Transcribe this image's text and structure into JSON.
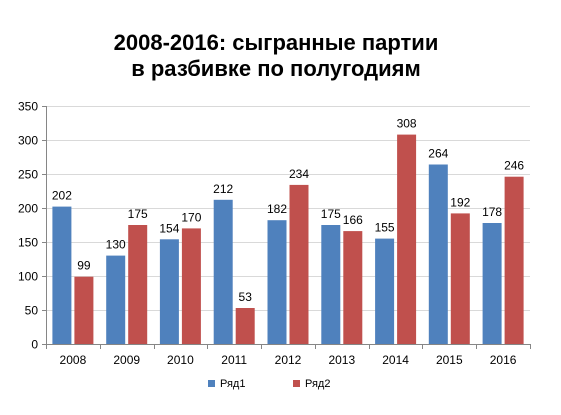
{
  "chart_data": {
    "type": "bar",
    "title_lines": [
      "2008-2016: сыгранные партии",
      "в разбивке по полугодиям"
    ],
    "categories": [
      "2008",
      "2009",
      "2010",
      "2011",
      "2012",
      "2013",
      "2014",
      "2015",
      "2016"
    ],
    "series": [
      {
        "name": "Ряд1",
        "color": "#4f81bd",
        "values": [
          202,
          130,
          154,
          212,
          182,
          175,
          155,
          264,
          178
        ]
      },
      {
        "name": "Ряд2",
        "color": "#c0504d",
        "values": [
          99,
          175,
          170,
          53,
          234,
          166,
          308,
          192,
          246
        ]
      }
    ],
    "ylim": [
      0,
      350
    ],
    "y_ticks": [
      0,
      50,
      100,
      150,
      200,
      250,
      300,
      350
    ],
    "grid": true,
    "legend_position": "bottom",
    "data_labels": true
  }
}
